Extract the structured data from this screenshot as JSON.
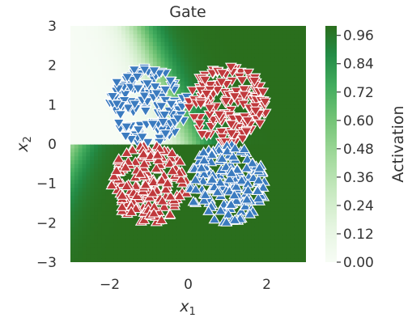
{
  "chart_data": {
    "type": "scatter",
    "title": "Gate",
    "xlabel_base": "x",
    "xlabel_sub": "1",
    "ylabel_base": "x",
    "ylabel_sub": "2",
    "xlim": [
      -3,
      3
    ],
    "ylim": [
      -3,
      3
    ],
    "xticks": [
      -2,
      0,
      2
    ],
    "yticks": [
      -3,
      -2,
      -1,
      0,
      1,
      2,
      3
    ],
    "grid": false,
    "colorbar": {
      "label": "Activation",
      "range": [
        0.0,
        1.0
      ],
      "ticks": [
        "0.00",
        "0.12",
        "0.24",
        "0.36",
        "0.48",
        "0.60",
        "0.72",
        "0.84",
        "0.96"
      ],
      "colormap": "Greens"
    },
    "background_field": {
      "description_of_gate": "activation ~0 in upper-left, ~1 in lower/right regions",
      "low_color": "#f7fcf5",
      "high_color": "#2a6e1d"
    },
    "series": [
      {
        "marker": "triangle-down",
        "color": "#3b7bbf",
        "cluster_center": [
          -1,
          1
        ],
        "cluster_radius": 1.0
      },
      {
        "marker": "triangle-down",
        "color": "#c0393c",
        "cluster_center": [
          1,
          1
        ],
        "cluster_radius": 1.0
      },
      {
        "marker": "triangle-up",
        "color": "#c0393c",
        "cluster_center": [
          -1,
          -1
        ],
        "cluster_radius": 1.0
      },
      {
        "marker": "triangle-up",
        "color": "#3b7bbf",
        "cluster_center": [
          1,
          -1
        ],
        "cluster_radius": 1.0
      }
    ],
    "points_per_cluster": 170
  }
}
